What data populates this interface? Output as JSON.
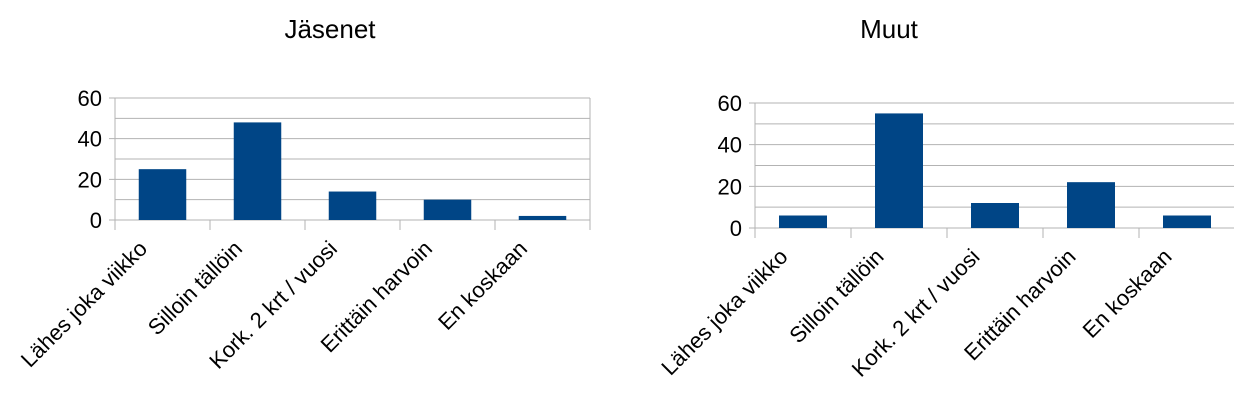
{
  "chart_data": [
    {
      "type": "bar",
      "title": "Jäsenet",
      "categories": [
        "Lähes joka viikko",
        "Silloin tällöin",
        "Kork. 2 krt / vuosi",
        "Erittäin harvoin",
        "En koskaan"
      ],
      "values": [
        25,
        48,
        14,
        10,
        2
      ],
      "ylim": [
        0,
        60
      ],
      "yticks": [
        0,
        20,
        40,
        60
      ],
      "xlabel": "",
      "ylabel": "",
      "grid": true,
      "color": "#004586"
    },
    {
      "type": "bar",
      "title": "Muut",
      "categories": [
        "Lähes joka viikko",
        "Silloin tällöin",
        "Kork. 2 krt / vuosi",
        "Erittäin harvoin",
        "En koskaan"
      ],
      "values": [
        6,
        55,
        12,
        22,
        6
      ],
      "ylim": [
        0,
        60
      ],
      "yticks": [
        0,
        20,
        40,
        60
      ],
      "xlabel": "",
      "ylabel": "",
      "grid": true,
      "color": "#004586"
    }
  ]
}
